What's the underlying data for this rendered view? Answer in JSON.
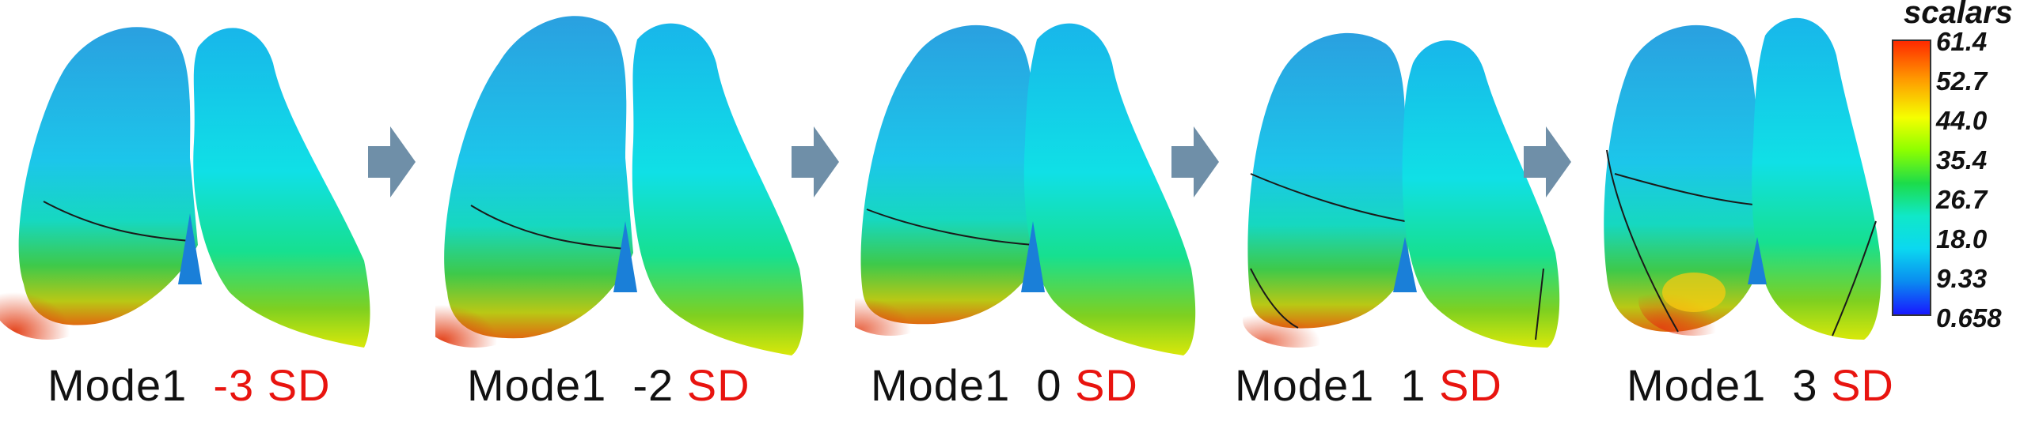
{
  "panels": [
    {
      "mode": "Mode1",
      "value": "-3",
      "unit": "SD",
      "value_color": "#e8140f"
    },
    {
      "mode": "Mode1",
      "value": "-2",
      "unit": "SD",
      "value_color": "#111111"
    },
    {
      "mode": "Mode1",
      "value": "0",
      "unit": "SD",
      "value_color": "#111111"
    },
    {
      "mode": "Mode1",
      "value": "1",
      "unit": "SD",
      "value_color": "#111111"
    },
    {
      "mode": "Mode1",
      "value": "3",
      "unit": "SD",
      "value_color": "#111111"
    }
  ],
  "colorbar": {
    "title": "scalars",
    "ticks": [
      "61.4",
      "52.7",
      "44.0",
      "35.4",
      "26.7",
      "18.0",
      "9.33",
      "0.658"
    ],
    "colors": [
      "#ff2a00",
      "#f5ff00",
      "#1cdc4a",
      "#0bd8f0",
      "#1818ff"
    ]
  },
  "colors": {
    "arrow": "#6f8fa8",
    "sd_text": "#e8140f",
    "body_text": "#111111"
  }
}
